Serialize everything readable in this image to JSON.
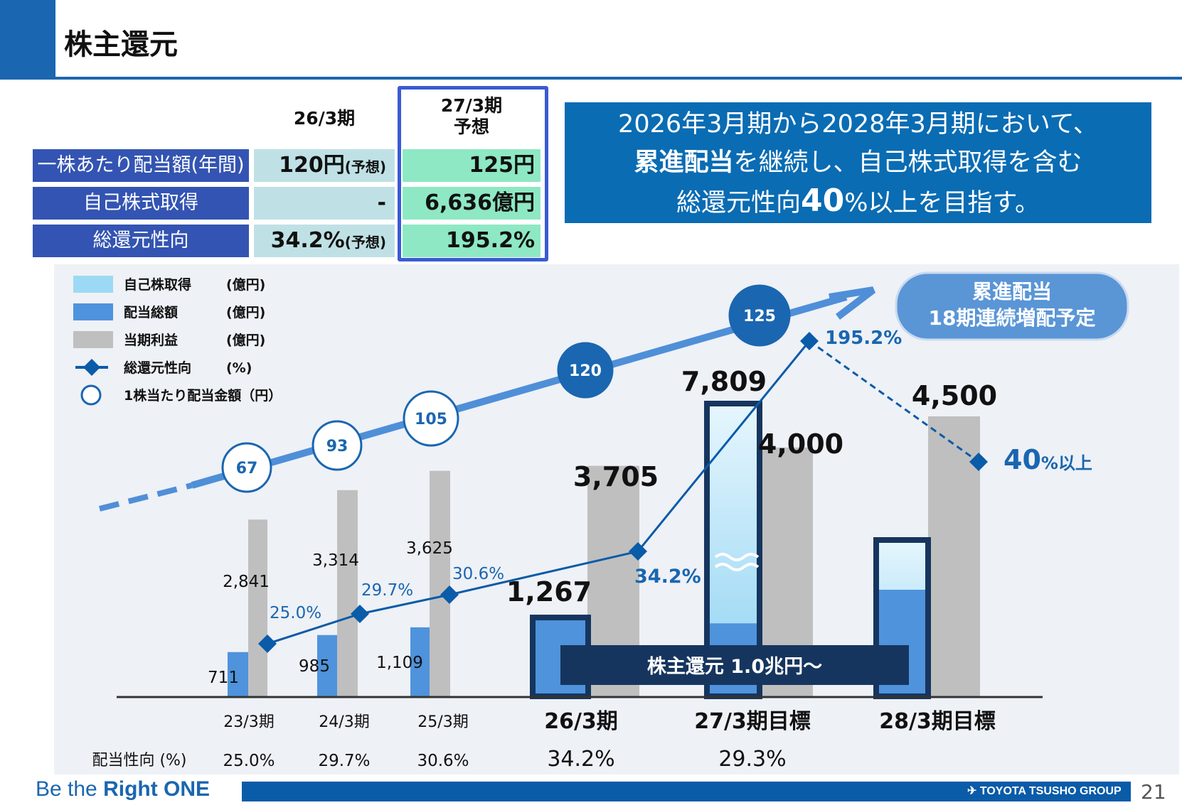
{
  "header": {
    "title": "株主還元"
  },
  "summary_table": {
    "col_current": "26/3期",
    "col_forecast_line1": "27/3期",
    "col_forecast_line2": "予想",
    "rows": [
      {
        "label": "一株あたり配当額(年間)",
        "current": "120円",
        "current_note": "(予想)",
        "forecast": "125円"
      },
      {
        "label": "自己株式取得",
        "current": "-",
        "current_note": "",
        "forecast": "6,636億円"
      },
      {
        "label": "総還元性向",
        "current": "34.2%",
        "current_note": "(予想)",
        "forecast": "195.2%"
      }
    ]
  },
  "message": {
    "line1": "2026年3月期から2028年3月期において、",
    "line2_bold": "累進配当",
    "line2_rest": "を継続し、自己株式取得を含む",
    "line3_pre": "総還元性向",
    "line3_big": "40",
    "line3_post": "%以上を目指す。"
  },
  "chart_data": {
    "type": "bar",
    "legend": [
      {
        "name": "自己株取得",
        "unit": "(億円)",
        "color": "#9cd9f4",
        "kind": "bar"
      },
      {
        "name": "配当総額",
        "unit": "(億円)",
        "color": "#4f93dc",
        "kind": "bar"
      },
      {
        "name": "当期利益",
        "unit": "(億円)",
        "color": "#bfbfbf",
        "kind": "bar"
      },
      {
        "name": "総還元性向",
        "unit": "(%)",
        "color": "#0a5ba8",
        "kind": "line"
      },
      {
        "name": "1株当たり配当金額",
        "unit": "（円）",
        "color": "#1a66b0",
        "kind": "circle"
      }
    ],
    "categories": [
      "23/3期",
      "24/3期",
      "25/3期",
      "26/3期",
      "27/3期目標",
      "28/3期目標"
    ],
    "net_income": [
      2841,
      3314,
      3625,
      3705,
      4000,
      4500
    ],
    "net_income_labels": [
      "2,841",
      "3,314",
      "3,625",
      "3,705",
      "4,000",
      "4,500"
    ],
    "dividends_total": [
      711,
      985,
      1109,
      1267,
      null,
      null
    ],
    "dividends_total_labels": [
      "711",
      "985",
      "1,109",
      "1,267"
    ],
    "return_27_label": "7,809",
    "total_return_ratio": [
      25.0,
      29.7,
      30.6,
      34.2,
      195.2,
      40
    ],
    "total_return_ratio_labels": [
      "25.0%",
      "29.7%",
      "30.6%",
      "34.2%",
      "195.2%"
    ],
    "target_label_big": "40",
    "target_label_small": "%以上",
    "dps": [
      67,
      93,
      105,
      120,
      125
    ],
    "dps_labels": [
      "67",
      "93",
      "105",
      "120",
      "125"
    ],
    "payout_ratio_label": "配当性向 (%)",
    "payout_ratio": [
      "25.0%",
      "29.7%",
      "30.6%",
      "34.2%",
      "29.3%"
    ],
    "callout_line1": "累進配当",
    "callout_line2": "18期連続増配予定",
    "return_banner": "株主還元 1.0兆円～"
  },
  "footer": {
    "slogan_pre": "Be the ",
    "slogan_bold": "Right ONE",
    "group": "TOYOTA TSUSHO GROUP",
    "page": "21"
  }
}
